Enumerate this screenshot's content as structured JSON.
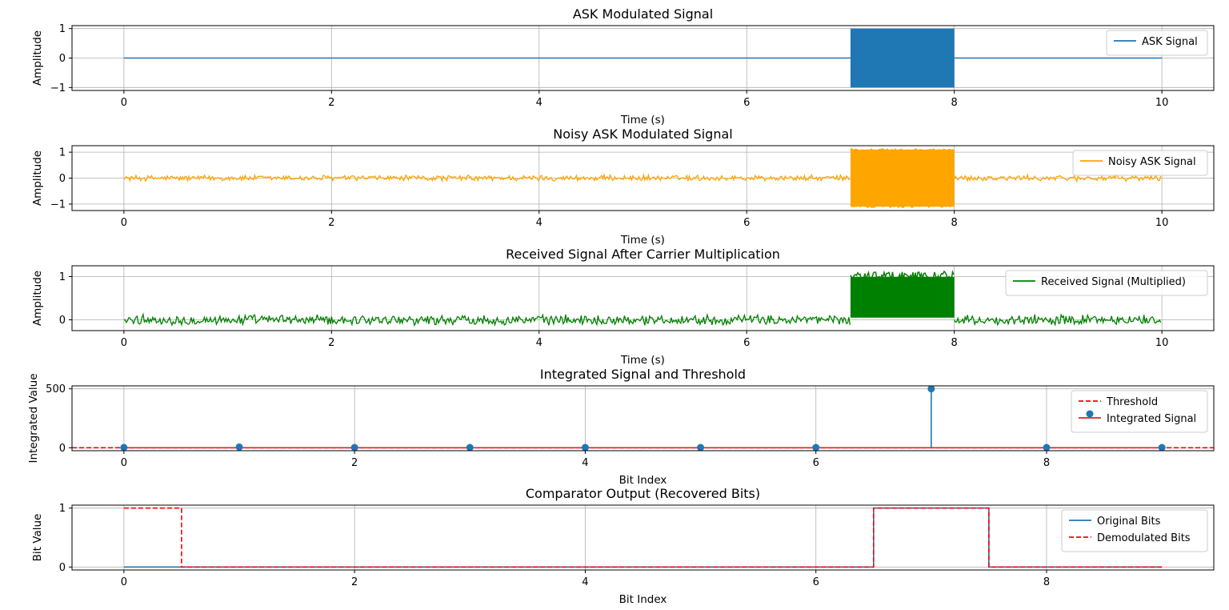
{
  "chart_data": [
    {
      "type": "line",
      "title": "ASK Modulated Signal",
      "xlabel": "Time (s)",
      "ylabel": "Amplitude",
      "xlim": [
        -0.5,
        10.5
      ],
      "ylim": [
        -1.1,
        1.1
      ],
      "xticks": [
        0,
        2,
        4,
        6,
        8,
        10
      ],
      "yticks": [
        -1,
        0,
        1
      ],
      "grid": true,
      "legend_position": "top-right",
      "series": [
        {
          "name": "ASK Signal",
          "color": "#1f77b4",
          "style": "solid",
          "segments": [
            {
              "x": [
                0,
                7
              ],
              "kind": "flat",
              "level": 0
            },
            {
              "x": [
                7,
                8
              ],
              "kind": "carrier",
              "amplitude": 1
            },
            {
              "x": [
                8,
                10
              ],
              "kind": "flat",
              "level": 0
            }
          ]
        }
      ]
    },
    {
      "type": "line",
      "title": "Noisy ASK Modulated Signal",
      "xlabel": "Time (s)",
      "ylabel": "Amplitude",
      "xlim": [
        -0.5,
        10.5
      ],
      "ylim": [
        -1.25,
        1.25
      ],
      "xticks": [
        0,
        2,
        4,
        6,
        8,
        10
      ],
      "yticks": [
        -1,
        0,
        1
      ],
      "grid": true,
      "legend_position": "top-right",
      "series": [
        {
          "name": "Noisy ASK Signal",
          "color": "#ffa500",
          "style": "solid",
          "segments": [
            {
              "x": [
                0,
                7
              ],
              "kind": "noise",
              "center": 0,
              "spread": 0.12
            },
            {
              "x": [
                7,
                8
              ],
              "kind": "carrier",
              "amplitude": 1.1
            },
            {
              "x": [
                8,
                10
              ],
              "kind": "noise",
              "center": 0,
              "spread": 0.12
            }
          ]
        }
      ]
    },
    {
      "type": "line",
      "title": "Received Signal After Carrier Multiplication",
      "xlabel": "Time (s)",
      "ylabel": "Amplitude",
      "xlim": [
        -0.5,
        10.5
      ],
      "ylim": [
        -0.25,
        1.25
      ],
      "xticks": [
        0,
        2,
        4,
        6,
        8,
        10
      ],
      "yticks": [
        0,
        1
      ],
      "grid": true,
      "legend_position": "top-right",
      "series": [
        {
          "name": "Received Signal (Multiplied)",
          "color": "#008000",
          "style": "solid",
          "segments": [
            {
              "x": [
                0,
                7
              ],
              "kind": "noise",
              "center": 0,
              "spread": 0.12
            },
            {
              "x": [
                7,
                8
              ],
              "kind": "band",
              "low": 0.05,
              "high": 1.1
            },
            {
              "x": [
                8,
                10
              ],
              "kind": "noise",
              "center": 0,
              "spread": 0.12
            }
          ]
        }
      ]
    },
    {
      "type": "stem",
      "title": "Integrated Signal and Threshold",
      "xlabel": "Bit Index",
      "ylabel": "Integrated Value",
      "xlim": [
        -0.45,
        9.45
      ],
      "ylim": [
        -25,
        525
      ],
      "xticks": [
        0,
        2,
        4,
        6,
        8
      ],
      "yticks": [
        0,
        500
      ],
      "grid": true,
      "legend_position": "top-right",
      "x": [
        0,
        1,
        2,
        3,
        4,
        5,
        6,
        7,
        8,
        9
      ],
      "series": [
        {
          "name": "Integrated Signal",
          "color": "#1f77b4",
          "values": [
            2,
            6,
            2,
            2,
            2,
            2,
            2,
            500,
            2,
            2
          ]
        }
      ],
      "threshold": {
        "name": "Threshold",
        "value": 0,
        "color": "#ff0000",
        "style": "dashed"
      }
    },
    {
      "type": "step",
      "title": "Comparator Output (Recovered Bits)",
      "xlabel": "Bit Index",
      "ylabel": "Bit Value",
      "xlim": [
        -0.45,
        9.45
      ],
      "ylim": [
        -0.05,
        1.05
      ],
      "xticks": [
        0,
        2,
        4,
        6,
        8
      ],
      "yticks": [
        0,
        1
      ],
      "grid": true,
      "legend_position": "top-right",
      "x": [
        0,
        1,
        2,
        3,
        4,
        5,
        6,
        7,
        8,
        9
      ],
      "series": [
        {
          "name": "Original Bits",
          "color": "#1f77b4",
          "style": "solid",
          "values": [
            0,
            0,
            0,
            0,
            0,
            0,
            0,
            1,
            0,
            0
          ]
        },
        {
          "name": "Demodulated Bits",
          "color": "#ff0000",
          "style": "dashed",
          "values": [
            1,
            0,
            0,
            0,
            0,
            0,
            0,
            1,
            0,
            0
          ]
        }
      ]
    }
  ]
}
